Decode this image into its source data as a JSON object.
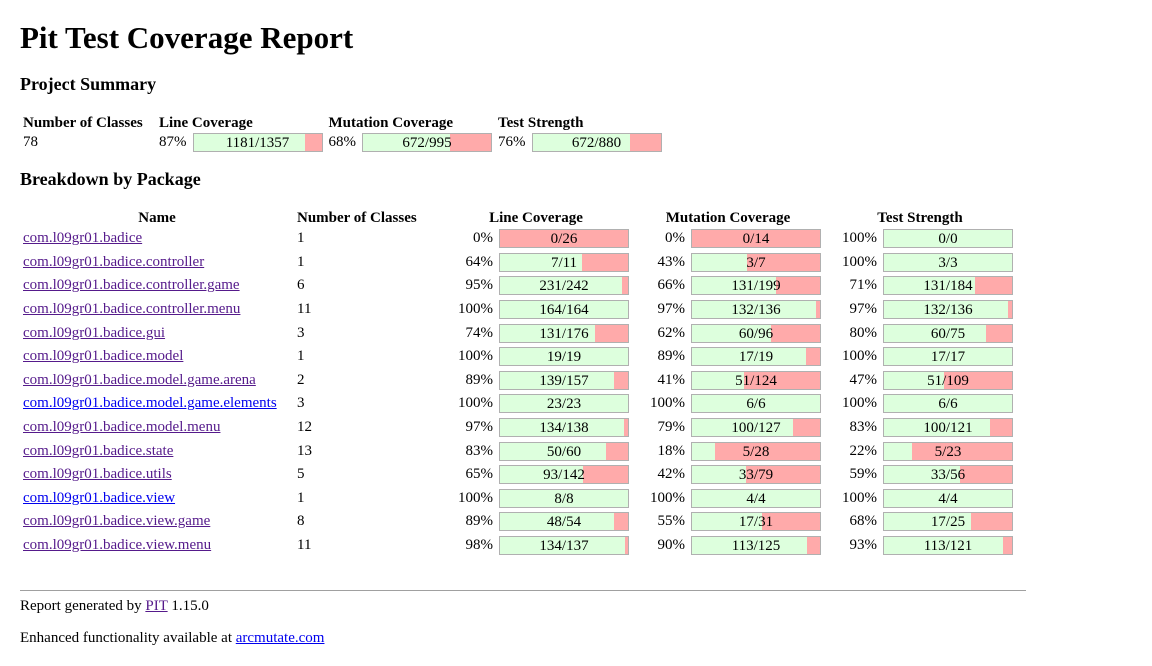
{
  "title": "Pit Test Coverage Report",
  "summary": {
    "heading": "Project Summary",
    "headers": {
      "classes": "Number of Classes",
      "line": "Line Coverage",
      "mutation": "Mutation Coverage",
      "strength": "Test Strength"
    },
    "num_classes": "78",
    "line_pct": "87%",
    "line_text": "1181/1357",
    "line_fill": 0.87,
    "mutation_pct": "68%",
    "mutation_text": "672/995",
    "mutation_fill": 0.68,
    "strength_pct": "76%",
    "strength_text": "672/880",
    "strength_fill": 0.76
  },
  "breakdown": {
    "heading": "Breakdown by Package",
    "headers": {
      "name": "Name",
      "classes": "Number of Classes",
      "line": "Line Coverage",
      "mutation": "Mutation Coverage",
      "strength": "Test Strength"
    },
    "rows": [
      {
        "name": "com.l09gr01.badice",
        "classes": "1",
        "line_pct": "0%",
        "line_text": "0/26",
        "line_fill": 0.0,
        "mut_pct": "0%",
        "mut_text": "0/14",
        "mut_fill": 0.0,
        "str_pct": "100%",
        "str_text": "0/0",
        "str_fill": 1.0
      },
      {
        "name": "com.l09gr01.badice.controller",
        "classes": "1",
        "line_pct": "64%",
        "line_text": "7/11",
        "line_fill": 0.64,
        "mut_pct": "43%",
        "mut_text": "3/7",
        "mut_fill": 0.43,
        "str_pct": "100%",
        "str_text": "3/3",
        "str_fill": 1.0
      },
      {
        "name": "com.l09gr01.badice.controller.game",
        "classes": "6",
        "line_pct": "95%",
        "line_text": "231/242",
        "line_fill": 0.95,
        "mut_pct": "66%",
        "mut_text": "131/199",
        "mut_fill": 0.66,
        "str_pct": "71%",
        "str_text": "131/184",
        "str_fill": 0.71
      },
      {
        "name": "com.l09gr01.badice.controller.menu",
        "classes": "11",
        "line_pct": "100%",
        "line_text": "164/164",
        "line_fill": 1.0,
        "mut_pct": "97%",
        "mut_text": "132/136",
        "mut_fill": 0.97,
        "str_pct": "97%",
        "str_text": "132/136",
        "str_fill": 0.97
      },
      {
        "name": "com.l09gr01.badice.gui",
        "classes": "3",
        "line_pct": "74%",
        "line_text": "131/176",
        "line_fill": 0.74,
        "mut_pct": "62%",
        "mut_text": "60/96",
        "mut_fill": 0.62,
        "str_pct": "80%",
        "str_text": "60/75",
        "str_fill": 0.8
      },
      {
        "name": "com.l09gr01.badice.model",
        "classes": "1",
        "line_pct": "100%",
        "line_text": "19/19",
        "line_fill": 1.0,
        "mut_pct": "89%",
        "mut_text": "17/19",
        "mut_fill": 0.89,
        "str_pct": "100%",
        "str_text": "17/17",
        "str_fill": 1.0
      },
      {
        "name": "com.l09gr01.badice.model.game.arena",
        "classes": "2",
        "line_pct": "89%",
        "line_text": "139/157",
        "line_fill": 0.89,
        "mut_pct": "41%",
        "mut_text": "51/124",
        "mut_fill": 0.41,
        "str_pct": "47%",
        "str_text": "51/109",
        "str_fill": 0.47
      },
      {
        "name": "com.l09gr01.badice.model.game.elements",
        "classes": "3",
        "line_pct": "100%",
        "line_text": "23/23",
        "line_fill": 1.0,
        "mut_pct": "100%",
        "mut_text": "6/6",
        "mut_fill": 1.0,
        "str_pct": "100%",
        "str_text": "6/6",
        "str_fill": 1.0,
        "link_color": "#0000ee"
      },
      {
        "name": "com.l09gr01.badice.model.menu",
        "classes": "12",
        "line_pct": "97%",
        "line_text": "134/138",
        "line_fill": 0.97,
        "mut_pct": "79%",
        "mut_text": "100/127",
        "mut_fill": 0.79,
        "str_pct": "83%",
        "str_text": "100/121",
        "str_fill": 0.83
      },
      {
        "name": "com.l09gr01.badice.state",
        "classes": "13",
        "line_pct": "83%",
        "line_text": "50/60",
        "line_fill": 0.83,
        "mut_pct": "18%",
        "mut_text": "5/28",
        "mut_fill": 0.18,
        "str_pct": "22%",
        "str_text": "5/23",
        "str_fill": 0.22
      },
      {
        "name": "com.l09gr01.badice.utils",
        "classes": "5",
        "line_pct": "65%",
        "line_text": "93/142",
        "line_fill": 0.65,
        "mut_pct": "42%",
        "mut_text": "33/79",
        "mut_fill": 0.42,
        "str_pct": "59%",
        "str_text": "33/56",
        "str_fill": 0.59
      },
      {
        "name": "com.l09gr01.badice.view",
        "classes": "1",
        "line_pct": "100%",
        "line_text": "8/8",
        "line_fill": 1.0,
        "mut_pct": "100%",
        "mut_text": "4/4",
        "mut_fill": 1.0,
        "str_pct": "100%",
        "str_text": "4/4",
        "str_fill": 1.0,
        "link_color": "#0000ee"
      },
      {
        "name": "com.l09gr01.badice.view.game",
        "classes": "8",
        "line_pct": "89%",
        "line_text": "48/54",
        "line_fill": 0.89,
        "mut_pct": "55%",
        "mut_text": "17/31",
        "mut_fill": 0.55,
        "str_pct": "68%",
        "str_text": "17/25",
        "str_fill": 0.68
      },
      {
        "name": "com.l09gr01.badice.view.menu",
        "classes": "11",
        "line_pct": "98%",
        "line_text": "134/137",
        "line_fill": 0.98,
        "mut_pct": "90%",
        "mut_text": "113/125",
        "mut_fill": 0.9,
        "str_pct": "93%",
        "str_text": "113/121",
        "str_fill": 0.93
      }
    ]
  },
  "footer": {
    "generated_prefix": "Report generated by ",
    "pit_link": "PIT",
    "version": " 1.15.0",
    "enhanced_prefix": "Enhanced functionality available at ",
    "arc_link": "arcmutate.com"
  },
  "colors": {
    "covered": "#ddffdd",
    "uncovered": "#ffaaaa",
    "visited_link": "#551a8b",
    "link": "#0000ee"
  }
}
